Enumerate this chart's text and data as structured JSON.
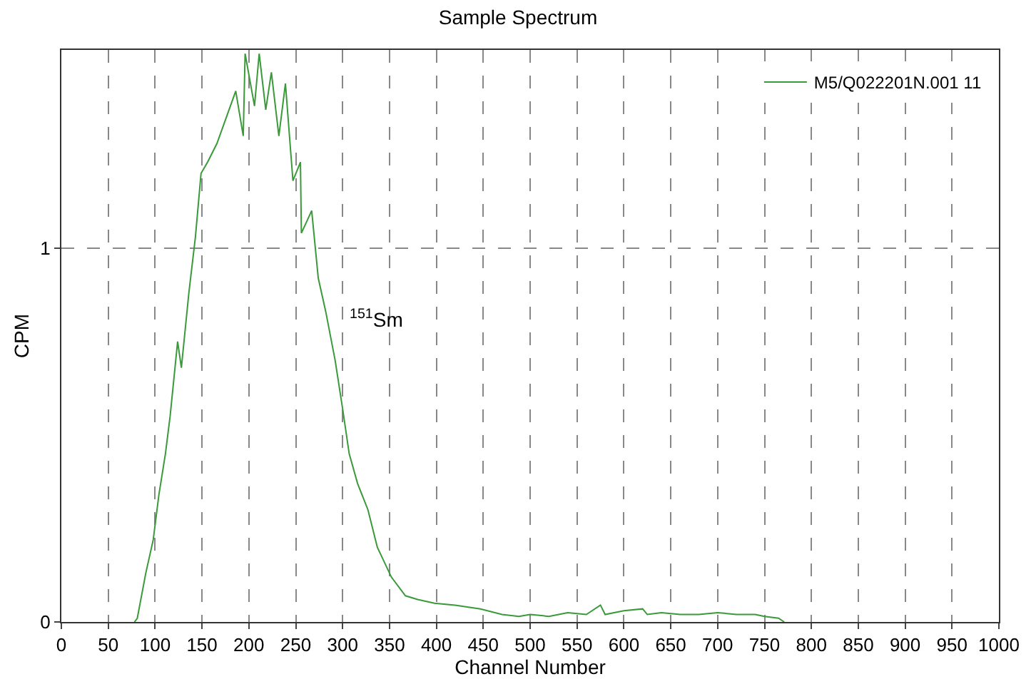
{
  "chart_data": {
    "type": "line",
    "title": "Sample Spectrum",
    "xlabel": "Channel Number",
    "ylabel": "CPM",
    "series": [
      {
        "name": "M5/Q022201N.001 11",
        "color": "#3a9a3a",
        "x": [
          78,
          81,
          90,
          98,
          104,
          111,
          116,
          124,
          128,
          136,
          143,
          149,
          156,
          166,
          176,
          186,
          194,
          196,
          206,
          211,
          218,
          224,
          232,
          239,
          247,
          255,
          256,
          267,
          274,
          282,
          292,
          300,
          307,
          316,
          327,
          337,
          352,
          367,
          380,
          398,
          420,
          447,
          470,
          488,
          500,
          520,
          540,
          560,
          575,
          580,
          600,
          620,
          625,
          640,
          660,
          680,
          700,
          720,
          740,
          750,
          765,
          771
        ],
        "values": [
          0,
          0.01,
          0.13,
          0.22,
          0.34,
          0.45,
          0.55,
          0.75,
          0.68,
          0.88,
          1.03,
          1.2,
          1.23,
          1.28,
          1.35,
          1.42,
          1.3,
          1.52,
          1.38,
          1.52,
          1.37,
          1.47,
          1.3,
          1.44,
          1.18,
          1.23,
          1.04,
          1.1,
          0.92,
          0.83,
          0.7,
          0.57,
          0.45,
          0.37,
          0.3,
          0.2,
          0.12,
          0.07,
          0.06,
          0.05,
          0.045,
          0.035,
          0.02,
          0.015,
          0.02,
          0.015,
          0.025,
          0.02,
          0.045,
          0.02,
          0.03,
          0.035,
          0.02,
          0.025,
          0.02,
          0.02,
          0.025,
          0.02,
          0.02,
          0.015,
          0.01,
          0
        ]
      }
    ],
    "annotations": [
      "$^{151}$Sm"
    ],
    "xlim": [
      0,
      1000
    ],
    "xticks": [
      0,
      50,
      100,
      150,
      200,
      250,
      300,
      350,
      400,
      450,
      500,
      550,
      600,
      650,
      700,
      750,
      800,
      850,
      900,
      950,
      1000
    ],
    "ylim": [
      0,
      1.53
    ],
    "yticks": [
      0,
      1
    ],
    "grid": true,
    "legend": "top right",
    "marker": "none",
    "line_style": "solid"
  }
}
